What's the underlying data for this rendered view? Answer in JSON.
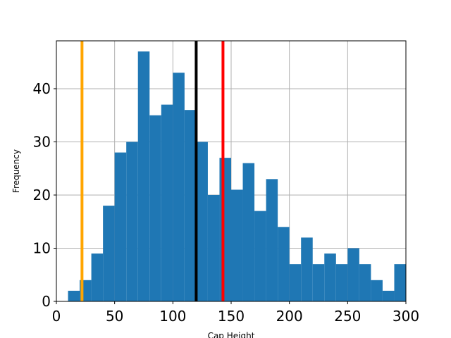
{
  "chart_data": {
    "type": "bar",
    "subtype": "histogram",
    "xlabel": "Cap Height",
    "ylabel": "Frequency",
    "xlim": [
      0,
      300
    ],
    "ylim": [
      0,
      49
    ],
    "xticks": [
      0,
      50,
      100,
      150,
      200,
      250,
      300
    ],
    "yticks": [
      0,
      10,
      20,
      30,
      40
    ],
    "grid": true,
    "bin_width": 10,
    "bins": [
      {
        "start": 10,
        "end": 20,
        "count": 2
      },
      {
        "start": 20,
        "end": 30,
        "count": 4
      },
      {
        "start": 30,
        "end": 40,
        "count": 9
      },
      {
        "start": 40,
        "end": 50,
        "count": 18
      },
      {
        "start": 50,
        "end": 60,
        "count": 28
      },
      {
        "start": 60,
        "end": 70,
        "count": 30
      },
      {
        "start": 70,
        "end": 80,
        "count": 47
      },
      {
        "start": 80,
        "end": 90,
        "count": 35
      },
      {
        "start": 90,
        "end": 100,
        "count": 37
      },
      {
        "start": 100,
        "end": 110,
        "count": 43
      },
      {
        "start": 110,
        "end": 120,
        "count": 36
      },
      {
        "start": 120,
        "end": 130,
        "count": 30
      },
      {
        "start": 130,
        "end": 140,
        "count": 20
      },
      {
        "start": 140,
        "end": 150,
        "count": 27
      },
      {
        "start": 150,
        "end": 160,
        "count": 21
      },
      {
        "start": 160,
        "end": 170,
        "count": 26
      },
      {
        "start": 170,
        "end": 180,
        "count": 17
      },
      {
        "start": 180,
        "end": 190,
        "count": 23
      },
      {
        "start": 190,
        "end": 200,
        "count": 14
      },
      {
        "start": 200,
        "end": 210,
        "count": 7
      },
      {
        "start": 210,
        "end": 220,
        "count": 12
      },
      {
        "start": 220,
        "end": 230,
        "count": 7
      },
      {
        "start": 230,
        "end": 240,
        "count": 9
      },
      {
        "start": 240,
        "end": 250,
        "count": 7
      },
      {
        "start": 250,
        "end": 260,
        "count": 10
      },
      {
        "start": 260,
        "end": 270,
        "count": 7
      },
      {
        "start": 270,
        "end": 280,
        "count": 4
      },
      {
        "start": 280,
        "end": 290,
        "count": 2
      },
      {
        "start": 290,
        "end": 300,
        "count": 7
      }
    ],
    "bar_color": "#1f77b4",
    "reference_lines": [
      {
        "x": 22,
        "color": "#ffa500"
      },
      {
        "x": 120,
        "color": "#000000"
      },
      {
        "x": 143,
        "color": "#ff0000"
      }
    ]
  }
}
